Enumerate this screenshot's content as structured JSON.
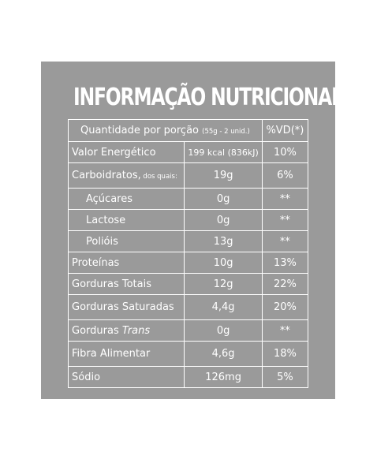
{
  "title": "INFORMAÇÃO NUTRICIONAL",
  "header": {
    "label": "Quantidade por porção",
    "portion_note": "(55g - 2 unid.)",
    "vd_label": "%VD(*)"
  },
  "rows": [
    {
      "name": "Valor Energético",
      "note": "",
      "italic": "",
      "qty": "199 kcal (836kJ)",
      "vd": "10%",
      "indent": false
    },
    {
      "name": "Carboidratos,",
      "note": " dos quais:",
      "italic": "",
      "qty": "19g",
      "vd": "6%",
      "indent": false
    },
    {
      "name": "Açúcares",
      "note": "",
      "italic": "",
      "qty": "0g",
      "vd": "**",
      "indent": true
    },
    {
      "name": "Lactose",
      "note": "",
      "italic": "",
      "qty": "0g",
      "vd": "**",
      "indent": true
    },
    {
      "name": "Polióis",
      "note": "",
      "italic": "",
      "qty": "13g",
      "vd": "**",
      "indent": true
    },
    {
      "name": "Proteínas",
      "note": "",
      "italic": "",
      "qty": "10g",
      "vd": "13%",
      "indent": false
    },
    {
      "name": "Gorduras Totais",
      "note": "",
      "italic": "",
      "qty": "12g",
      "vd": "22%",
      "indent": false
    },
    {
      "name": "Gorduras Saturadas",
      "note": "",
      "italic": "",
      "qty": "4,4g",
      "vd": "20%",
      "indent": false
    },
    {
      "name": "Gorduras ",
      "note": "",
      "italic": "Trans",
      "qty": "0g",
      "vd": "**",
      "indent": false
    },
    {
      "name": "Fibra Alimentar",
      "note": "",
      "italic": "",
      "qty": "4,6g",
      "vd": "18%",
      "indent": false
    },
    {
      "name": "Sódio",
      "note": "",
      "italic": "",
      "qty": "126mg",
      "vd": "5%",
      "indent": false
    }
  ],
  "colors": {
    "panel": "#9a9a9a",
    "text": "#ffffff"
  }
}
